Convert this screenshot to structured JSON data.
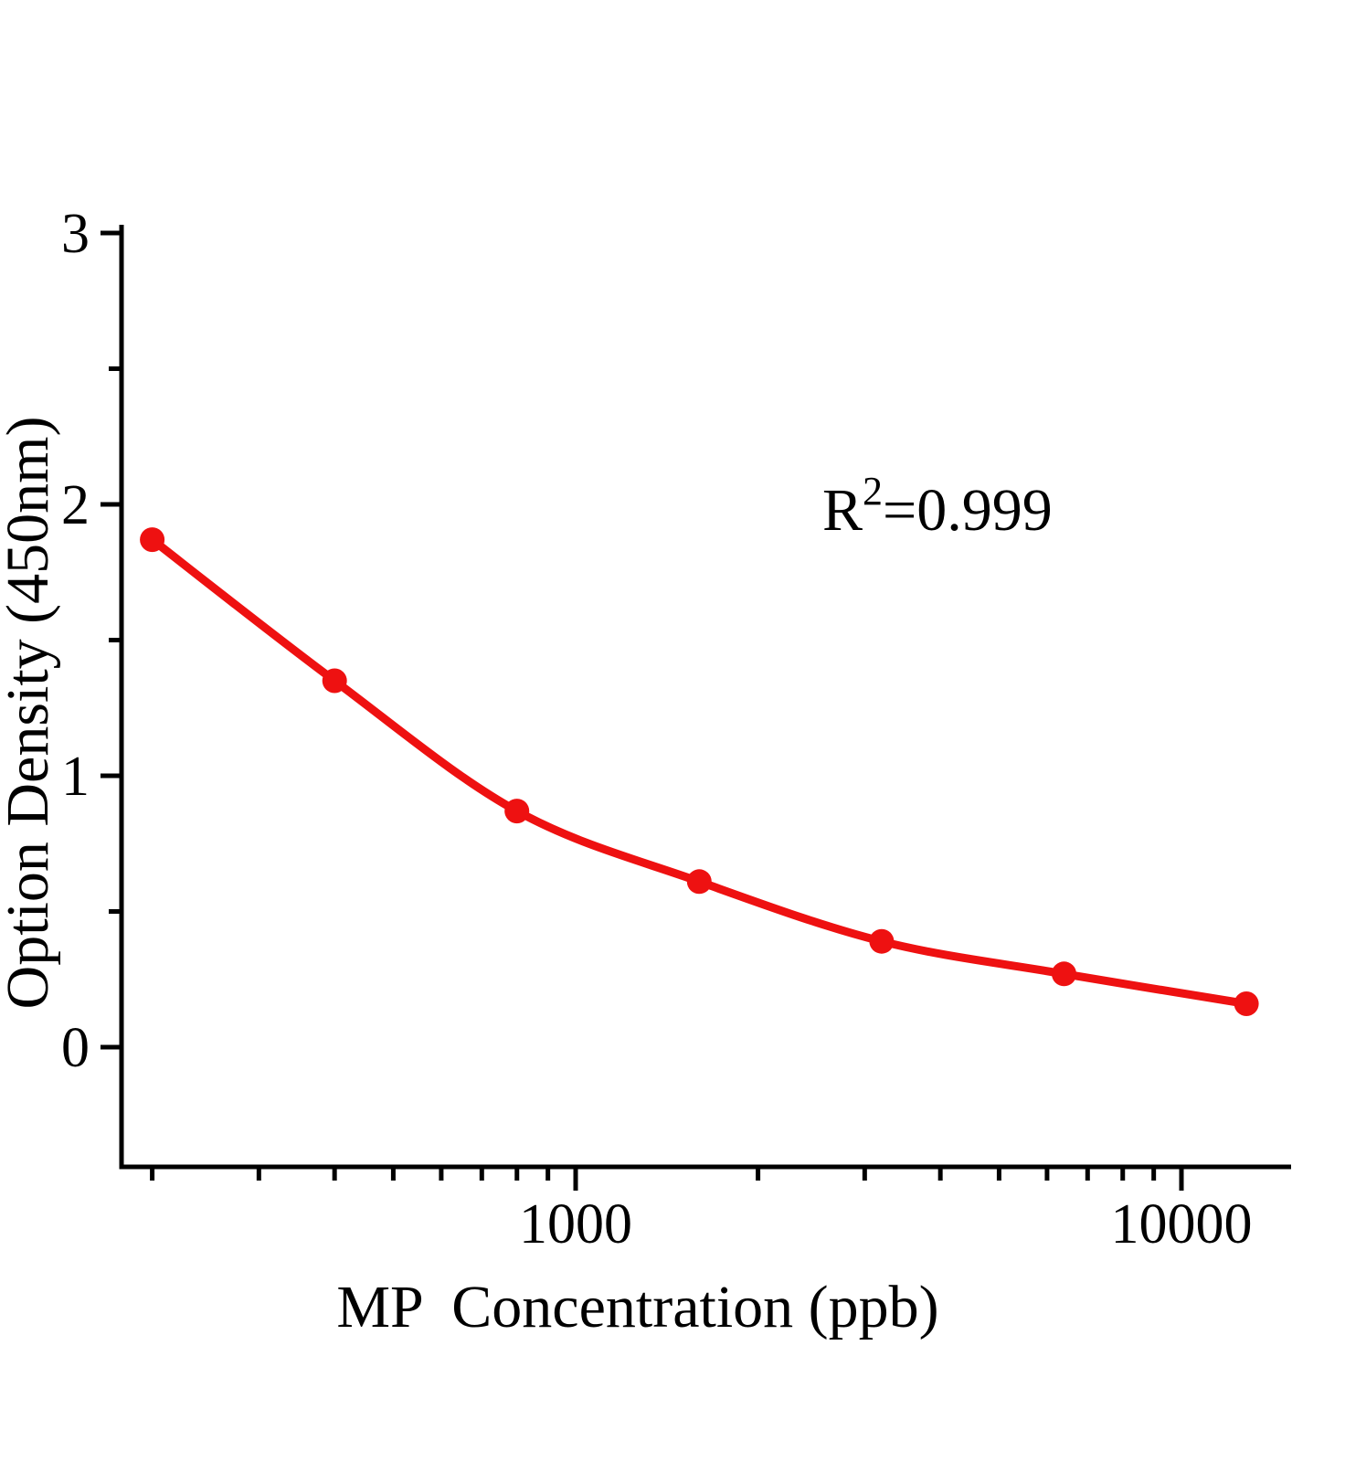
{
  "chart_data": {
    "type": "line",
    "title": "",
    "xlabel": "MP  Concentration（ppb）",
    "ylabel": "Option Density（450nm）",
    "annotation": {
      "base": "R",
      "sup": "2",
      "rest": "=0.999"
    },
    "x_scale": "log",
    "x": [
      200,
      400,
      800,
      1600,
      3200,
      6400,
      12800
    ],
    "y": [
      1.87,
      1.35,
      0.87,
      0.61,
      0.39,
      0.27,
      0.16
    ],
    "x_major_ticks": [
      1000,
      10000
    ],
    "x_major_tick_labels": [
      "1000",
      "10000"
    ],
    "x_minor_ticks": [
      200,
      300,
      400,
      500,
      600,
      700,
      800,
      900,
      2000,
      3000,
      4000,
      5000,
      6000,
      7000,
      8000,
      9000
    ],
    "y_major_ticks": [
      0,
      1,
      2,
      3
    ],
    "y_major_tick_labels": [
      "0",
      "1",
      "2",
      "3"
    ],
    "y_minor_ticks": [
      0.5,
      1.5,
      2.5
    ],
    "xlim": [
      178,
      15170
    ],
    "ylim": [
      -0.44,
      3.03
    ],
    "grid": false,
    "legend": "none",
    "marker": "circle",
    "line_color": "#ee1111",
    "axis_color": "#000000",
    "background": "#ffffff"
  }
}
